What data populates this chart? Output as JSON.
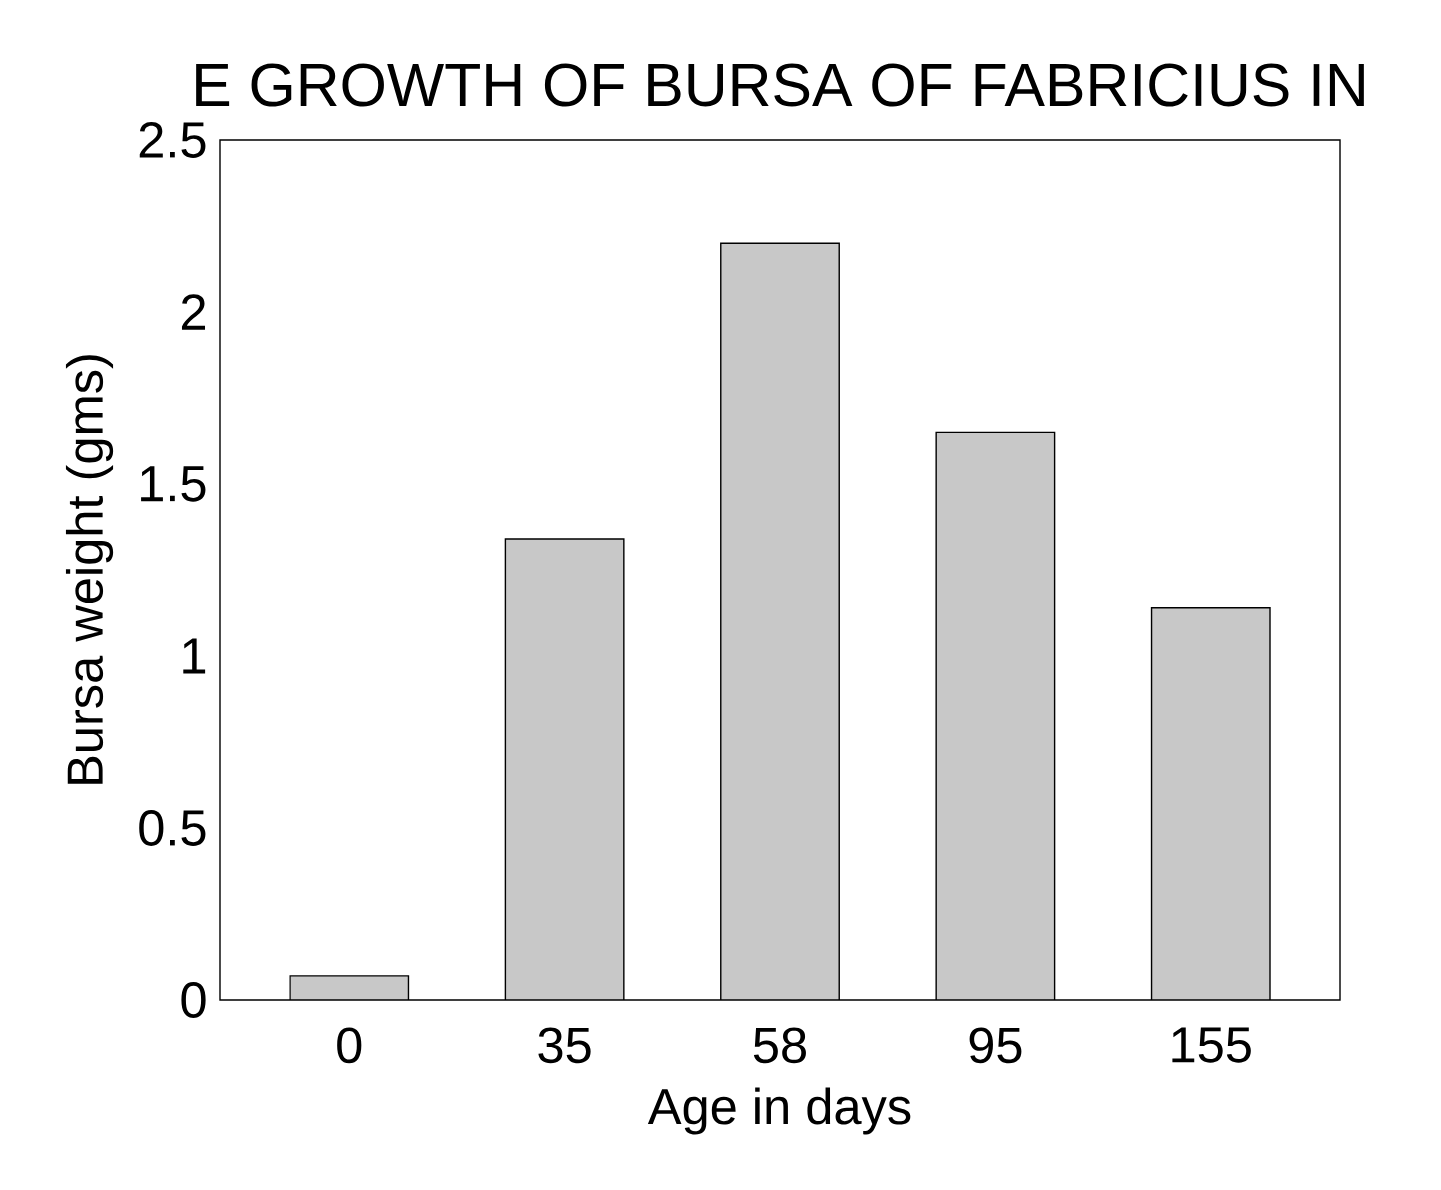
{
  "chart_data": {
    "type": "bar",
    "title": "E GROWTH OF BURSA OF FABRICIUS IN",
    "xlabel": "Age in days",
    "ylabel": "Bursa weight  (gms)",
    "categories": [
      "0",
      "35",
      "58",
      "95",
      "155"
    ],
    "values": [
      0.07,
      1.34,
      2.2,
      1.65,
      1.14
    ],
    "color": "#c8c8c8",
    "ylim": [
      0,
      2.5
    ],
    "yticks": [
      0,
      0.5,
      1,
      1.5,
      2,
      2.5
    ]
  }
}
